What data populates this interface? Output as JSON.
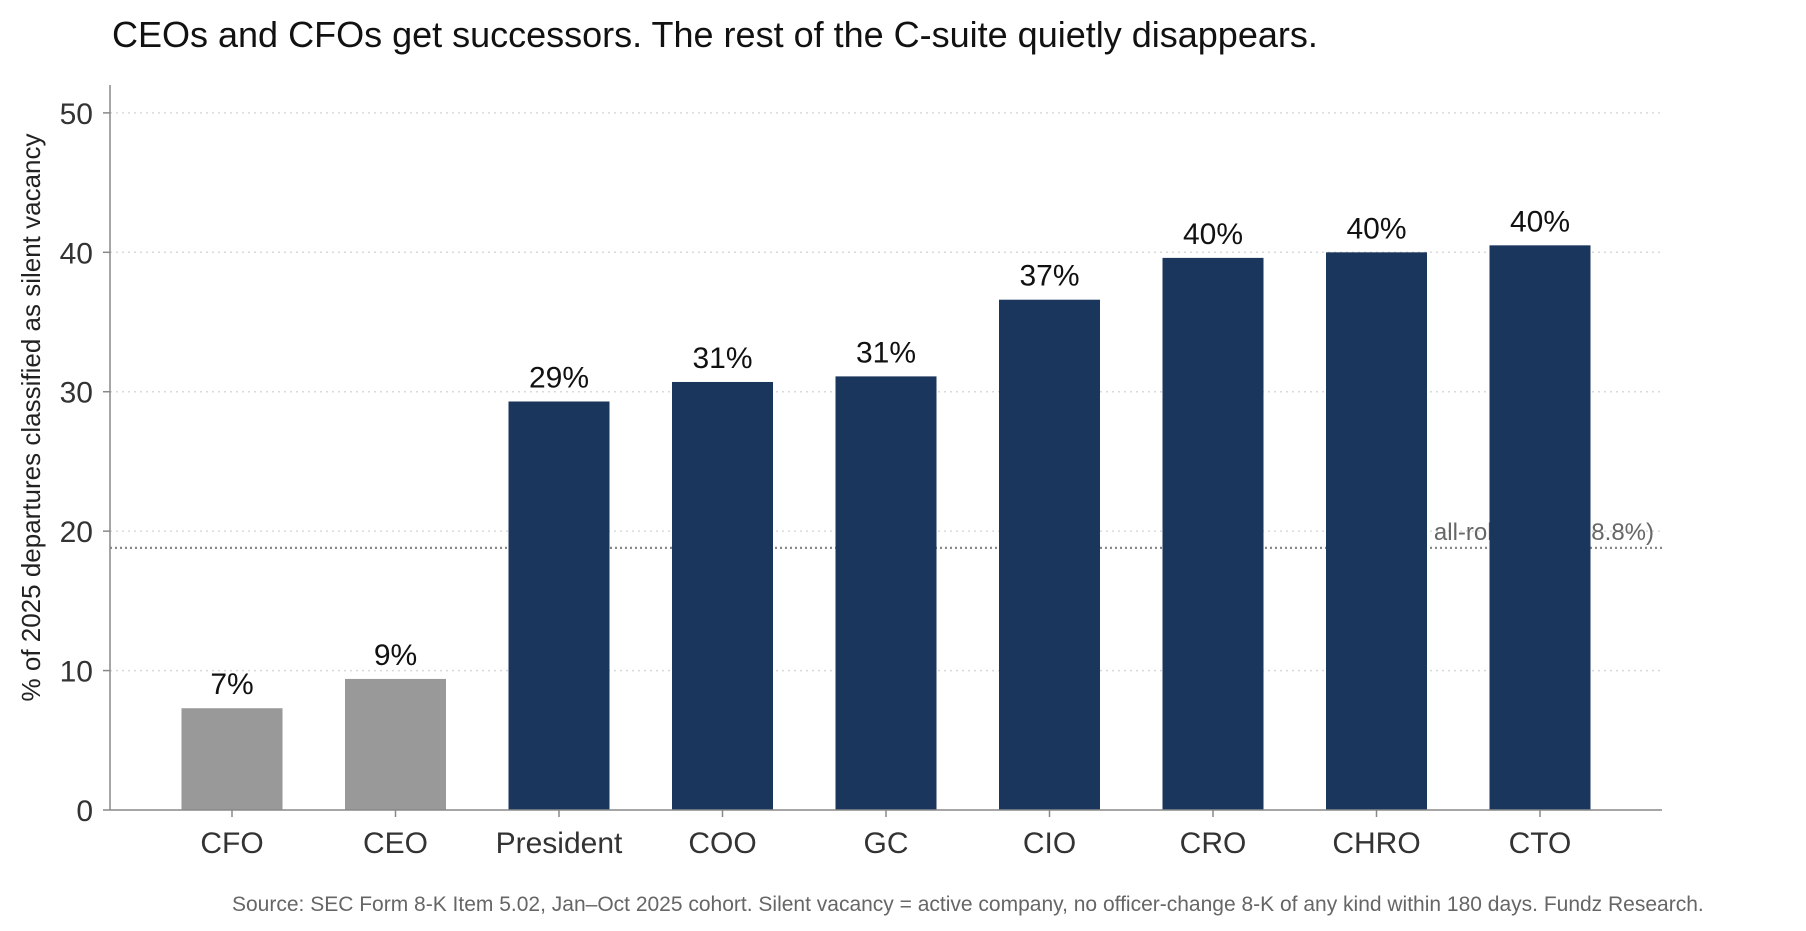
{
  "chart_data": {
    "type": "bar",
    "title": "CEOs and CFOs get successors. The rest of the C-suite quietly disappears.",
    "xlabel": "",
    "ylabel": "% of 2025 departures classified as silent vacancy",
    "categories": [
      "CFO",
      "CEO",
      "President",
      "COO",
      "GC",
      "CIO",
      "CRO",
      "CHRO",
      "CTO"
    ],
    "values": [
      7.3,
      9.4,
      29.3,
      30.7,
      31.1,
      36.6,
      39.6,
      40.0,
      40.5
    ],
    "value_labels": [
      "7%",
      "9%",
      "29%",
      "31%",
      "31%",
      "37%",
      "40%",
      "40%",
      "40%"
    ],
    "highlight": [
      false,
      false,
      true,
      true,
      true,
      true,
      true,
      true,
      true
    ],
    "ylim": [
      0,
      52
    ],
    "yticks": [
      0,
      10,
      20,
      30,
      40,
      50
    ],
    "grid": true,
    "reference_line": {
      "value": 18.8,
      "label": "all-roles avg (18.8%)"
    },
    "colors": {
      "muted": "#999999",
      "highlight": "#1b365d",
      "grid": "#d9d9d9",
      "reference": "#888888",
      "axis": "#888888"
    },
    "source": "Source: SEC Form 8-K Item 5.02, Jan–Oct 2025 cohort. Silent vacancy = active company, no officer-change 8-K of any kind within 180 days. Fundz Research."
  }
}
